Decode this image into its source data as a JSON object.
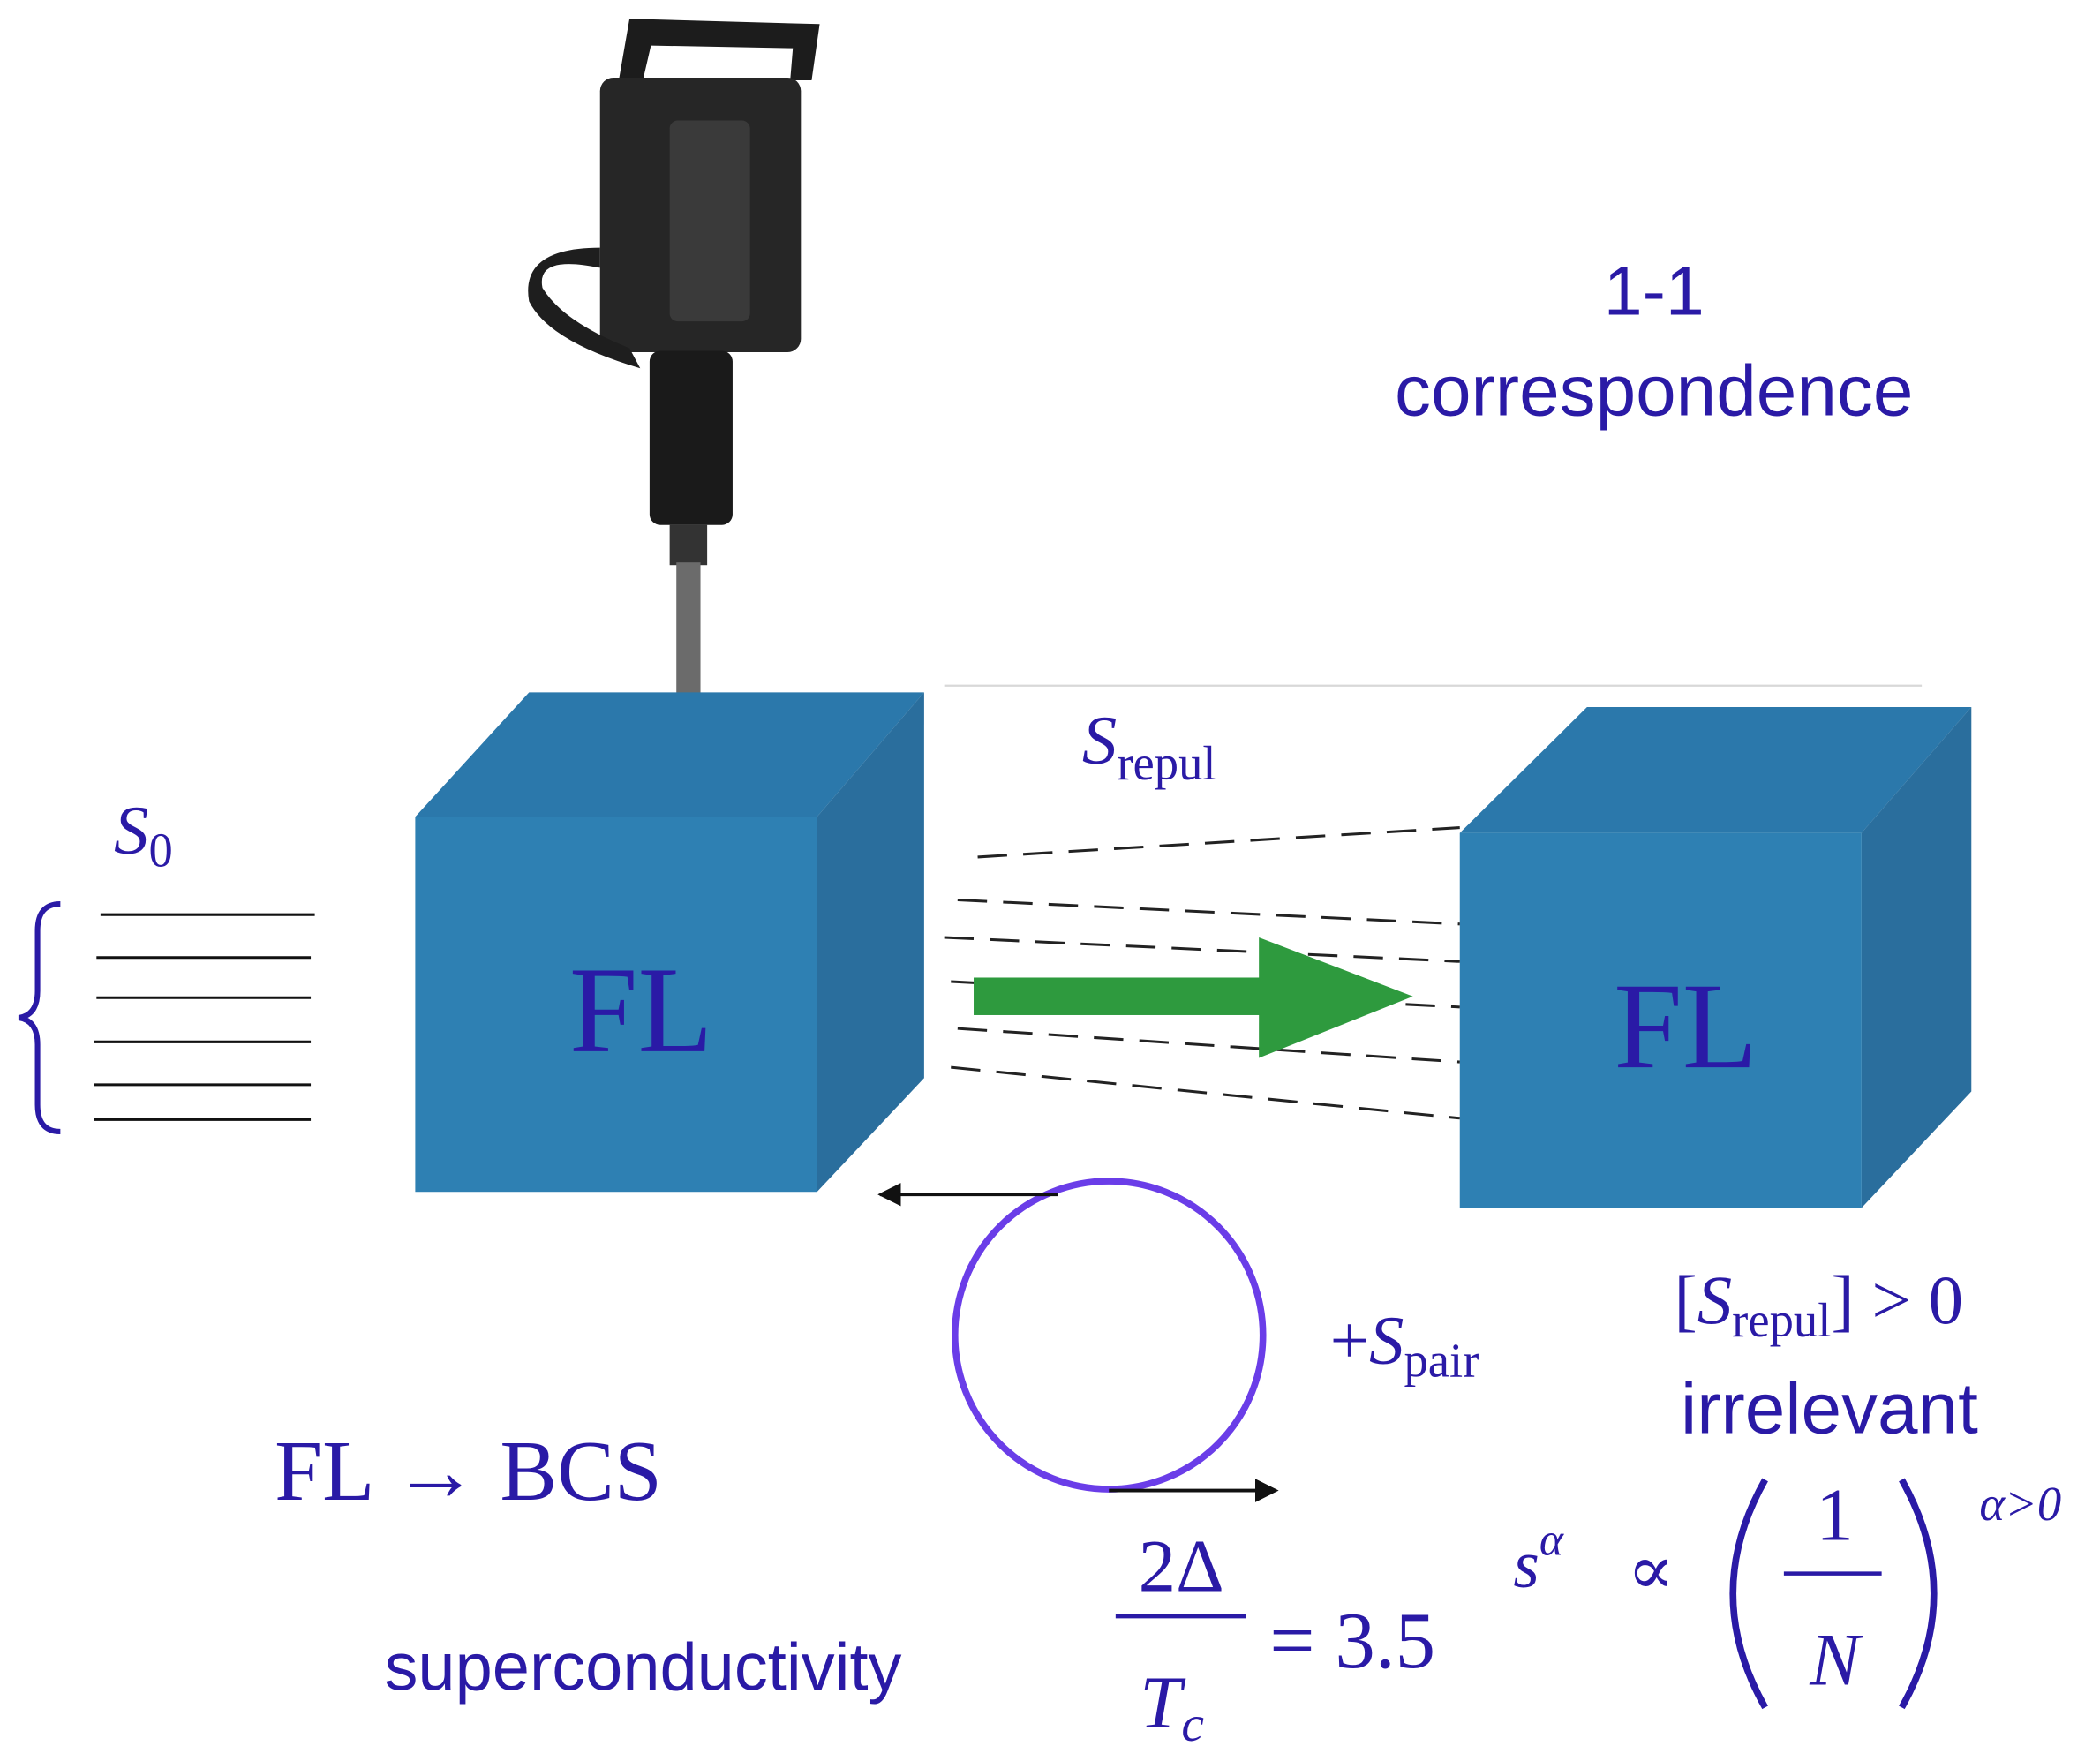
{
  "annotation": {
    "line1": "1-1",
    "line2": "correspondence"
  },
  "action_label": {
    "symbol": "S",
    "subscript": "repul"
  },
  "ground_label": {
    "symbol": "S",
    "subscript": "0"
  },
  "cubes": [
    {
      "label": "FL"
    },
    {
      "label": "FL"
    }
  ],
  "pair_term": {
    "prefix": "+",
    "symbol": "S",
    "subscript": "pair"
  },
  "relevance": {
    "open": "[",
    "symbol": "S",
    "subscript": "repul",
    "close": "] > 0",
    "word": "irrelevant"
  },
  "transition": "FL → BCS",
  "caption": "superconductivity",
  "gap_ratio": {
    "numerator": "2Δ",
    "denominator_symbol": "T",
    "denominator_subscript": "c",
    "rhs": "= 3.5"
  },
  "scaling": {
    "lhs_symbol": "s",
    "lhs_exponent": "α",
    "relation": "∝",
    "numerator": "1",
    "denominator": "N",
    "exponent": "α>0"
  }
}
